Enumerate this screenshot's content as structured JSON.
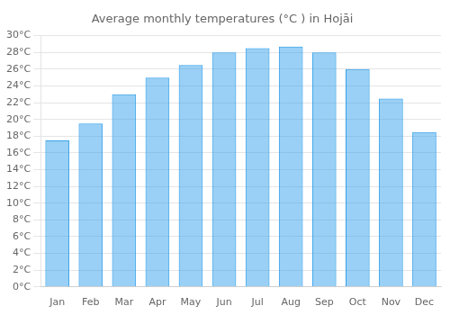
{
  "chart_data": {
    "type": "bar",
    "title": "Average monthly temperatures (°C ) in Hojāi",
    "categories": [
      "Jan",
      "Feb",
      "Mar",
      "Apr",
      "May",
      "Jun",
      "Jul",
      "Aug",
      "Sep",
      "Oct",
      "Nov",
      "Dec"
    ],
    "values": [
      17.5,
      19.5,
      23.0,
      25.0,
      26.5,
      28.0,
      28.5,
      28.7,
      28.0,
      26.0,
      22.5,
      18.5
    ],
    "ylim": [
      0,
      30
    ],
    "yticks": [
      {
        "value": 0,
        "label": "0°C"
      },
      {
        "value": 2,
        "label": "2°C"
      },
      {
        "value": 4,
        "label": "4°C"
      },
      {
        "value": 6,
        "label": "6°C"
      },
      {
        "value": 8,
        "label": "8°C"
      },
      {
        "value": 10,
        "label": "10°C"
      },
      {
        "value": 12,
        "label": "12°C"
      },
      {
        "value": 14,
        "label": "14°C"
      },
      {
        "value": 16,
        "label": "16°C"
      },
      {
        "value": 18,
        "label": "18°C"
      },
      {
        "value": 20,
        "label": "20°C"
      },
      {
        "value": 22,
        "label": "22°C"
      },
      {
        "value": 24,
        "label": "24°C"
      },
      {
        "value": 26,
        "label": "26°C"
      },
      {
        "value": 28,
        "label": "28°C"
      },
      {
        "value": 30,
        "label": "30°C"
      }
    ],
    "grid": true
  }
}
